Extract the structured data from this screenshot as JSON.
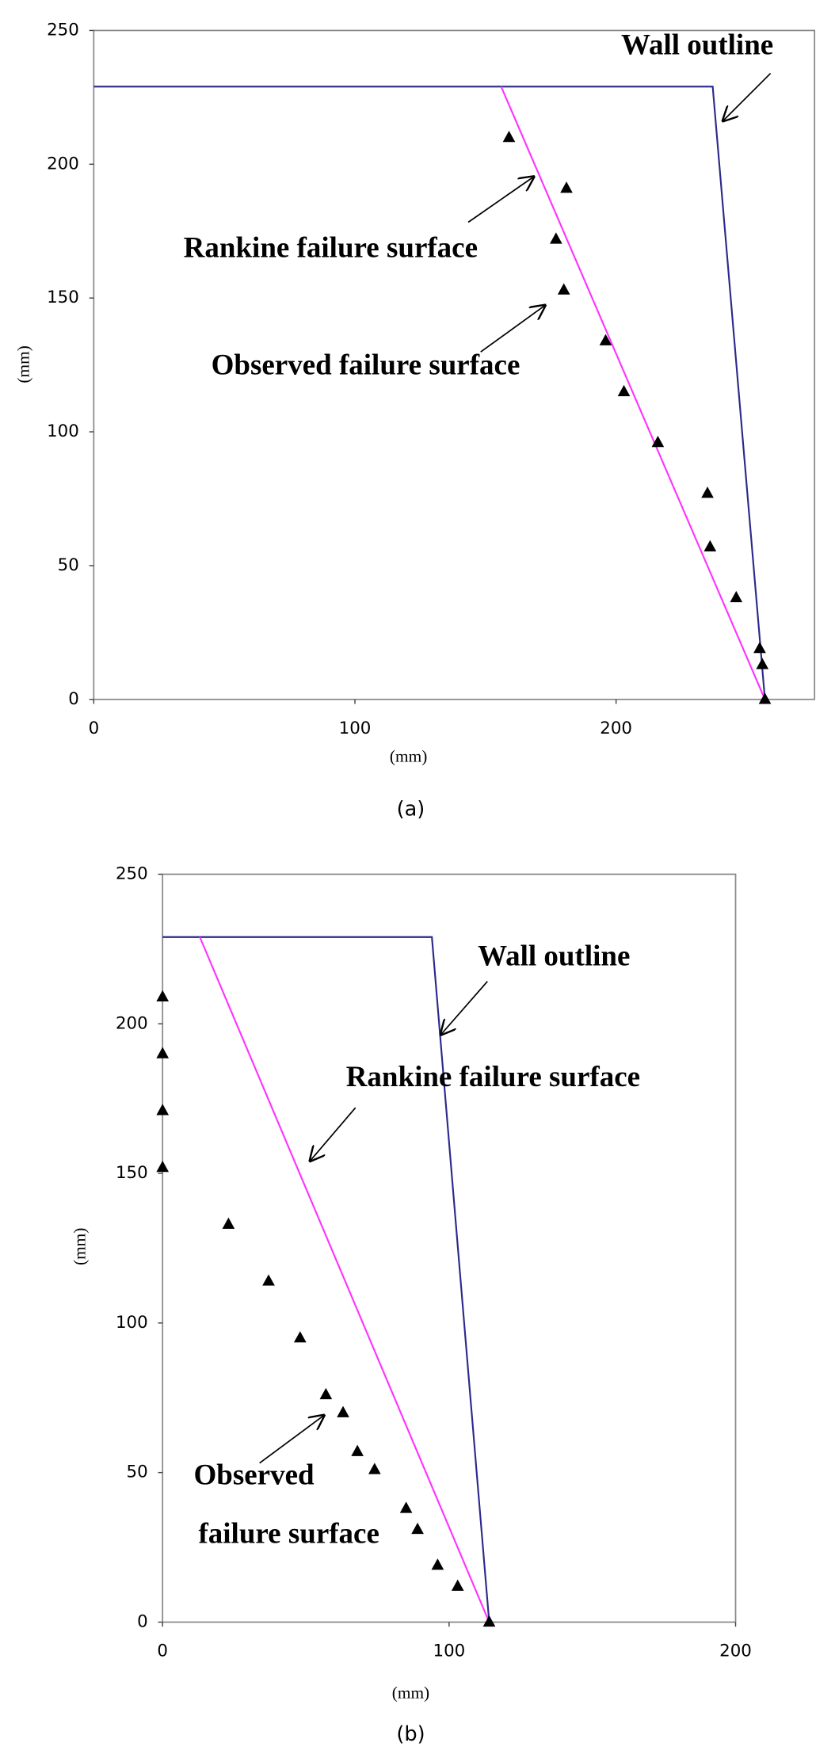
{
  "chart_data": [
    {
      "type": "scatter",
      "caption": "(a)",
      "xlabel": "(mm)",
      "ylabel": "(mm)",
      "xlim": [
        0,
        276
      ],
      "ylim": [
        0,
        250
      ],
      "xticks": [
        0,
        100,
        200
      ],
      "yticks": [
        0,
        50,
        100,
        150,
        200,
        250
      ],
      "series": [
        {
          "color": "#2a2a8a",
          "mode": "line",
          "x": [
            0,
            237,
            257
          ],
          "values": [
            229,
            229,
            0
          ]
        },
        {
          "color": "#ff33ff",
          "mode": "line",
          "x": [
            156,
            257
          ],
          "values": [
            229,
            0
          ]
        },
        {
          "color": "#000000",
          "mode": "markers",
          "x": [
            159,
            181,
            177,
            180,
            196,
            203,
            216,
            235,
            236,
            246,
            255,
            256,
            257
          ],
          "values": [
            210,
            191,
            172,
            153,
            134,
            115,
            96,
            77,
            57,
            38,
            19,
            13,
            0
          ]
        }
      ],
      "annotations": [
        "Wall outline",
        "Rankine failure surface",
        "Observed failure surface"
      ]
    },
    {
      "type": "scatter",
      "caption": "(b)",
      "xlabel": "(mm)",
      "ylabel": "(mm)",
      "xlim": [
        0,
        200
      ],
      "ylim": [
        0,
        250
      ],
      "xticks": [
        0,
        100,
        200
      ],
      "yticks": [
        0,
        50,
        100,
        150,
        200,
        250
      ],
      "series": [
        {
          "color": "#2a2a8a",
          "mode": "line",
          "x": [
            0,
            94,
            114
          ],
          "values": [
            229,
            229,
            0
          ]
        },
        {
          "color": "#ff33ff",
          "mode": "line",
          "x": [
            13,
            114
          ],
          "values": [
            229,
            0
          ]
        },
        {
          "color": "#000000",
          "mode": "markers",
          "x": [
            0,
            0,
            0,
            0,
            23,
            37,
            48,
            57,
            63,
            68,
            74,
            85,
            89,
            96,
            103,
            114
          ],
          "values": [
            209,
            190,
            171,
            152,
            133,
            114,
            95,
            76,
            70,
            57,
            51,
            38,
            31,
            19,
            12,
            0
          ]
        }
      ],
      "annotations": [
        "Wall outline",
        "Rankine failure surface",
        "Observed",
        "failure surface"
      ]
    }
  ]
}
